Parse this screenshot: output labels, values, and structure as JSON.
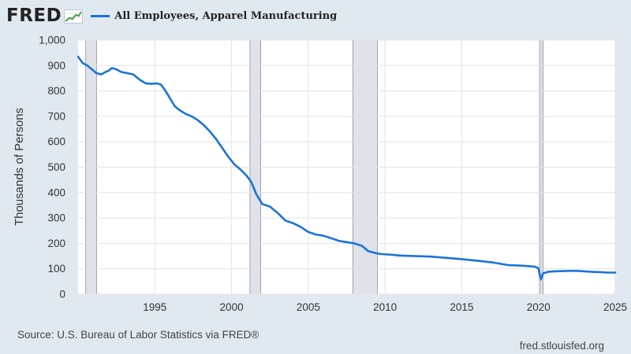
{
  "header": {
    "logo_text": "FRED",
    "logo_icon": "line-chart-icon",
    "series_title": "All Employees, Apparel Manufacturing",
    "series_color": "#1a74d8"
  },
  "footer": {
    "source": "Source: U.S. Bureau of Labor Statistics via FRED®",
    "url": "fred.stlouisfed.org"
  },
  "chart_data": {
    "type": "line",
    "title": "All Employees, Apparel Manufacturing",
    "ylabel": "Thousands of Persons",
    "xlabel": "",
    "xlim": [
      1990.0,
      2025.0
    ],
    "ylim": [
      0,
      1000
    ],
    "yticks": [
      0,
      100,
      200,
      300,
      400,
      500,
      600,
      700,
      800,
      900,
      1000
    ],
    "ytick_labels": [
      "0",
      "100",
      "200",
      "300",
      "400",
      "500",
      "600",
      "700",
      "800",
      "900",
      "1,000"
    ],
    "xticks": [
      1995,
      2000,
      2005,
      2010,
      2015,
      2020,
      2025
    ],
    "xtick_labels": [
      "1995",
      "2000",
      "2005",
      "2010",
      "2015",
      "2020",
      "2025"
    ],
    "grid": true,
    "recessions": [
      [
        1990.5,
        1991.2
      ],
      [
        2001.2,
        2001.9
      ],
      [
        2007.9,
        2009.5
      ],
      [
        2020.1,
        2020.3
      ]
    ],
    "series": [
      {
        "name": "All Employees, Apparel Manufacturing",
        "color": "#1a74d8",
        "x": [
          1990.0,
          1990.3,
          1990.6,
          1990.9,
          1991.2,
          1991.5,
          1991.8,
          1992.0,
          1992.2,
          1992.5,
          1992.8,
          1993.2,
          1993.6,
          1994.0,
          1994.4,
          1994.8,
          1995.1,
          1995.4,
          1995.7,
          1996.0,
          1996.3,
          1996.6,
          1997.0,
          1997.4,
          1997.8,
          1998.2,
          1998.6,
          1999.0,
          1999.4,
          1999.8,
          2000.2,
          2000.6,
          2001.0,
          2001.3,
          2001.6,
          2002.0,
          2002.5,
          2003.0,
          2003.5,
          2004.0,
          2004.5,
          2005.0,
          2005.5,
          2006.0,
          2006.5,
          2007.0,
          2007.5,
          2008.0,
          2008.5,
          2008.9,
          2009.2,
          2009.5,
          2009.8,
          2010.5,
          2011.0,
          2012.0,
          2013.0,
          2014.0,
          2015.0,
          2016.0,
          2017.0,
          2018.0,
          2019.0,
          2019.8,
          2020.0,
          2020.15,
          2020.3,
          2020.6,
          2021.0,
          2022.0,
          2022.5,
          2023.0,
          2023.5,
          2024.0,
          2024.5,
          2025.0
        ],
        "y": [
          935,
          910,
          900,
          885,
          870,
          865,
          875,
          880,
          890,
          885,
          875,
          870,
          865,
          845,
          830,
          828,
          830,
          825,
          800,
          770,
          740,
          725,
          710,
          700,
          685,
          665,
          640,
          610,
          575,
          540,
          510,
          490,
          465,
          440,
          395,
          355,
          345,
          320,
          290,
          280,
          265,
          245,
          235,
          230,
          220,
          210,
          205,
          200,
          190,
          170,
          165,
          160,
          158,
          155,
          152,
          150,
          148,
          143,
          138,
          132,
          125,
          115,
          112,
          108,
          102,
          58,
          82,
          88,
          90,
          92,
          92,
          90,
          88,
          87,
          85,
          85
        ]
      }
    ]
  }
}
